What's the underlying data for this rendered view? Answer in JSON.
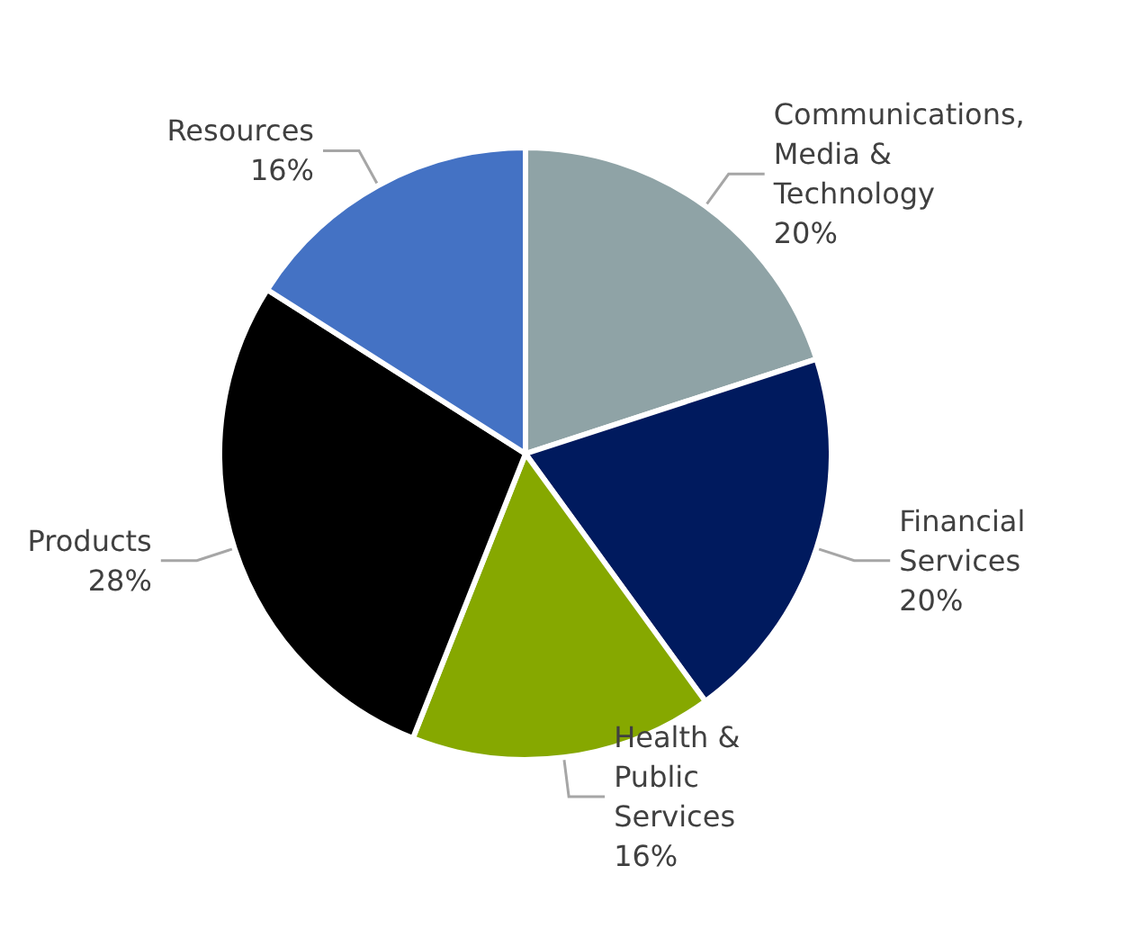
{
  "chart_data": {
    "type": "pie",
    "categories": [
      "Communications, Media & Technology",
      "Financial Services",
      "Health & Public Services",
      "Products",
      "Resources"
    ],
    "values": [
      20,
      20,
      16,
      28,
      16
    ],
    "value_labels": [
      "20%",
      "20%",
      "16%",
      "28%",
      "16%"
    ],
    "colors": [
      "#8fa3a6",
      "#001a5e",
      "#86a800",
      "#000000",
      "#4472c4"
    ],
    "legend": false
  }
}
